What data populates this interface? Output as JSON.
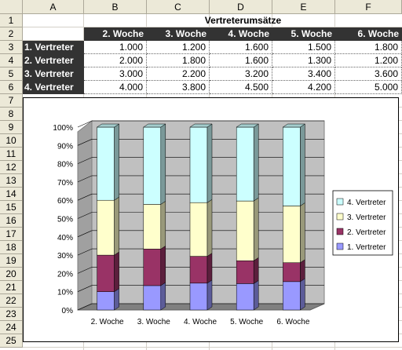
{
  "columns": [
    "A",
    "B",
    "C",
    "D",
    "E",
    "F"
  ],
  "rows": [
    "1",
    "2",
    "3",
    "4",
    "5",
    "6",
    "7",
    "8",
    "9",
    "10",
    "11",
    "12",
    "13",
    "14",
    "15",
    "16",
    "17",
    "18",
    "19",
    "20",
    "21",
    "22",
    "23",
    "24",
    "25"
  ],
  "sheet": {
    "title": "Vertreterumsätze",
    "header_row": [
      "2. Woche",
      "3. Woche",
      "4. Woche",
      "5. Woche",
      "6. Woche"
    ],
    "data_rows": [
      {
        "label": "1. Vertreter",
        "values": [
          "1.000",
          "1.200",
          "1.600",
          "1.500",
          "1.800"
        ]
      },
      {
        "label": "2. Vertreter",
        "values": [
          "2.000",
          "1.800",
          "1.600",
          "1.300",
          "1.200"
        ]
      },
      {
        "label": "3. Vertreter",
        "values": [
          "3.000",
          "2.200",
          "3.200",
          "3.400",
          "3.600"
        ]
      },
      {
        "label": "4. Vertreter",
        "values": [
          "4.000",
          "3.800",
          "4.500",
          "4.200",
          "5.000"
        ]
      }
    ]
  },
  "chart_data": {
    "type": "bar",
    "stacked": "percent",
    "categories": [
      "2. Woche",
      "3. Woche",
      "4. Woche",
      "5. Woche",
      "6. Woche"
    ],
    "series": [
      {
        "name": "1. Vertreter",
        "values": [
          1000,
          1200,
          1600,
          1500,
          1800
        ],
        "color": "#9999ff"
      },
      {
        "name": "2. Vertreter",
        "values": [
          2000,
          1800,
          1600,
          1300,
          1200
        ],
        "color": "#993366"
      },
      {
        "name": "3. Vertreter",
        "values": [
          3000,
          2200,
          3200,
          3400,
          3600
        ],
        "color": "#ffffcc"
      },
      {
        "name": "4. Vertreter",
        "values": [
          4000,
          3800,
          4500,
          4200,
          5000
        ],
        "color": "#ccffff"
      }
    ],
    "yticks": [
      "0%",
      "10%",
      "20%",
      "30%",
      "40%",
      "50%",
      "60%",
      "70%",
      "80%",
      "90%",
      "100%"
    ],
    "ylim": [
      0,
      100
    ],
    "legend": "right",
    "grid": true,
    "wall_color": "#c0c0c0"
  }
}
